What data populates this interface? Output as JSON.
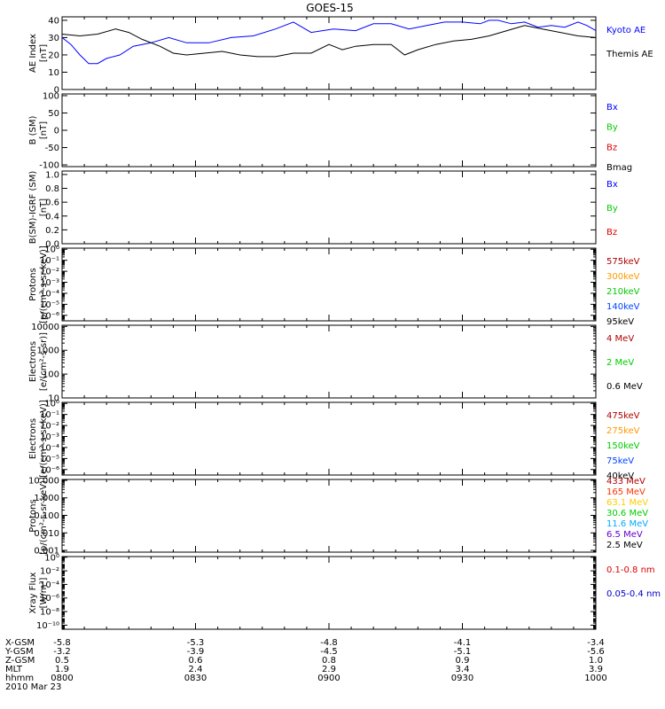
{
  "title": "GOES-15",
  "panels": [
    {
      "id": "ae",
      "ylabel_lines": [
        "AE Index",
        "[nT]"
      ],
      "ticks": [
        "0",
        "10",
        "20",
        "30",
        "40"
      ],
      "tick_values": [
        0,
        10,
        20,
        30,
        40
      ],
      "ylim": [
        0,
        42
      ],
      "scale": "linear",
      "legend": [
        {
          "text": "Kyoto AE",
          "color": "#0000ff"
        },
        {
          "text": "Themis AE",
          "color": "#000000"
        }
      ]
    },
    {
      "id": "b-sm",
      "ylabel_lines": [
        "B (SM)",
        "[nT]"
      ],
      "ticks": [
        "-100",
        "-50",
        "0",
        "50",
        "100"
      ],
      "tick_values": [
        -100,
        -50,
        0,
        50,
        100
      ],
      "ylim": [
        -105,
        105
      ],
      "scale": "linear",
      "legend": [
        {
          "text": "Bx",
          "color": "#0000ff"
        },
        {
          "text": "By",
          "color": "#00cc00"
        },
        {
          "text": "Bz",
          "color": "#dd0000"
        },
        {
          "text": "Bmag",
          "color": "#000000"
        }
      ]
    },
    {
      "id": "b-igrf",
      "ylabel_lines": [
        "B(SM)-IGRF (SM)",
        "[nT]"
      ],
      "ticks": [
        "0.0",
        "0.2",
        "0.4",
        "0.6",
        "0.8",
        "1.0"
      ],
      "tick_values": [
        0,
        0.2,
        0.4,
        0.6,
        0.8,
        1.0
      ],
      "ylim": [
        0,
        1.05
      ],
      "scale": "linear",
      "legend": [
        {
          "text": "Bx",
          "color": "#0000ff"
        },
        {
          "text": "By",
          "color": "#00cc00"
        },
        {
          "text": "Bz",
          "color": "#dd0000"
        }
      ]
    },
    {
      "id": "protons-low",
      "ylabel_lines": [
        "Protons",
        "[p/(cm²-s-sr-keV)]"
      ],
      "ticks": [
        "10⁰",
        "10⁻¹",
        "10⁻²",
        "10⁻³",
        "10⁻⁴",
        "10⁻⁵",
        "10⁻⁶"
      ],
      "tick_values": [
        0,
        -1,
        -2,
        -3,
        -4,
        -5,
        -6
      ],
      "ylim": [
        -6.5,
        0.1
      ],
      "scale": "log",
      "legend": [
        {
          "text": "575keV",
          "color": "#b00000"
        },
        {
          "text": "300keV",
          "color": "#ff9900"
        },
        {
          "text": "210keV",
          "color": "#00cc00"
        },
        {
          "text": "140keV",
          "color": "#0044ff"
        },
        {
          "text": "95keV",
          "color": "#000000"
        }
      ]
    },
    {
      "id": "electrons-high",
      "ylabel_lines": [
        "Electrons",
        "[e/(cm²-s-sr)]"
      ],
      "ticks": [
        "10",
        "100",
        "1000",
        "10000"
      ],
      "tick_values": [
        1,
        2,
        3,
        4
      ],
      "ylim": [
        1,
        4.05
      ],
      "scale": "log",
      "legend": [
        {
          "text": "4 MeV",
          "color": "#b00000"
        },
        {
          "text": "2 MeV",
          "color": "#00cc00"
        },
        {
          "text": "0.6 MeV",
          "color": "#000000"
        }
      ]
    },
    {
      "id": "electrons-low",
      "ylabel_lines": [
        "Electrons",
        "[e/(cm²-s-sr-keV)]"
      ],
      "ticks": [
        "10⁰",
        "10⁻¹",
        "10⁻²",
        "10⁻³",
        "10⁻⁴",
        "10⁻⁵",
        "10⁻⁶"
      ],
      "tick_values": [
        0,
        -1,
        -2,
        -3,
        -4,
        -5,
        -6
      ],
      "ylim": [
        -6.5,
        0.1
      ],
      "scale": "log",
      "legend": [
        {
          "text": "475keV",
          "color": "#b00000"
        },
        {
          "text": "275keV",
          "color": "#ff9900"
        },
        {
          "text": "150keV",
          "color": "#00cc00"
        },
        {
          "text": "75keV",
          "color": "#0044ff"
        },
        {
          "text": "40keV",
          "color": "#000000"
        }
      ]
    },
    {
      "id": "protons-high",
      "ylabel_lines": [
        "Protons",
        "[p/(cm²-s-sr-keV)]"
      ],
      "ticks": [
        "0.001",
        "0.010",
        "0.100",
        "1.000",
        "10.000"
      ],
      "tick_values": [
        -3,
        -2,
        -1,
        0,
        1
      ],
      "ylim": [
        -3.1,
        1.05
      ],
      "scale": "log",
      "legend": [
        {
          "text": "433 MeV",
          "color": "#b00000"
        },
        {
          "text": "165 MeV",
          "color": "#ff3300"
        },
        {
          "text": "63.1 MeV",
          "color": "#ffcc00"
        },
        {
          "text": "30.6 MeV",
          "color": "#00cc00"
        },
        {
          "text": "11.6 MeV",
          "color": "#00aaff"
        },
        {
          "text": "6.5 MeV",
          "color": "#6600cc"
        },
        {
          "text": "2.5 MeV",
          "color": "#000000"
        }
      ]
    },
    {
      "id": "xray",
      "ylabel_lines": [
        "Xray Flux",
        "[W/m²]"
      ],
      "ticks": [
        "10⁰",
        "10⁻²",
        "10⁻⁴",
        "10⁻⁶",
        "10⁻⁸",
        "10⁻¹⁰"
      ],
      "tick_values": [
        0,
        -2,
        -4,
        -6,
        -8,
        -10
      ],
      "ylim": [
        -10.6,
        0.1
      ],
      "scale": "log",
      "legend": [
        {
          "text": "0.1-0.8 nm",
          "color": "#dd0000"
        },
        {
          "text": "0.05-0.4 nm",
          "color": "#0000cc"
        }
      ]
    }
  ],
  "chart_data": {
    "type": "line",
    "title": "GOES-15",
    "x": [
      "0800",
      "0815",
      "0830",
      "0845",
      "0900",
      "0915",
      "0930",
      "0945",
      "1000"
    ],
    "x_minutes": [
      0,
      15,
      30,
      45,
      60,
      75,
      90,
      105,
      120
    ],
    "series_panel": "ae",
    "series": [
      {
        "name": "Kyoto AE",
        "color": "#0000ff",
        "points": [
          [
            0,
            30
          ],
          [
            2,
            26
          ],
          [
            4,
            20
          ],
          [
            6,
            15
          ],
          [
            8,
            15
          ],
          [
            10,
            18
          ],
          [
            13,
            20
          ],
          [
            16,
            25
          ],
          [
            20,
            27
          ],
          [
            24,
            30
          ],
          [
            28,
            27
          ],
          [
            33,
            27
          ],
          [
            38,
            30
          ],
          [
            43,
            31
          ],
          [
            48,
            35
          ],
          [
            52,
            39
          ],
          [
            56,
            33
          ],
          [
            61,
            35
          ],
          [
            66,
            34
          ],
          [
            70,
            38
          ],
          [
            74,
            38
          ],
          [
            78,
            35
          ],
          [
            82,
            37
          ],
          [
            86,
            39
          ],
          [
            90,
            39
          ],
          [
            94,
            38
          ],
          [
            96,
            40
          ],
          [
            98,
            40
          ],
          [
            101,
            38
          ],
          [
            104,
            39
          ],
          [
            107,
            36
          ],
          [
            110,
            37
          ],
          [
            113,
            36
          ],
          [
            116,
            39
          ],
          [
            118,
            37
          ],
          [
            120,
            34
          ]
        ]
      },
      {
        "name": "Themis AE",
        "color": "#000000",
        "points": [
          [
            0,
            32
          ],
          [
            4,
            31
          ],
          [
            8,
            32
          ],
          [
            12,
            35
          ],
          [
            15,
            33
          ],
          [
            18,
            29
          ],
          [
            22,
            25
          ],
          [
            25,
            21
          ],
          [
            28,
            20
          ],
          [
            32,
            21
          ],
          [
            36,
            22
          ],
          [
            40,
            20
          ],
          [
            44,
            19
          ],
          [
            48,
            19
          ],
          [
            52,
            21
          ],
          [
            56,
            21
          ],
          [
            60,
            26
          ],
          [
            63,
            23
          ],
          [
            66,
            25
          ],
          [
            70,
            26
          ],
          [
            74,
            26
          ],
          [
            77,
            20
          ],
          [
            80,
            23
          ],
          [
            84,
            26
          ],
          [
            88,
            28
          ],
          [
            92,
            29
          ],
          [
            96,
            31
          ],
          [
            100,
            34
          ],
          [
            104,
            37
          ],
          [
            106,
            36
          ],
          [
            108,
            35
          ],
          [
            112,
            33
          ],
          [
            116,
            31
          ],
          [
            120,
            30
          ]
        ]
      }
    ],
    "ylim": [
      0,
      42
    ],
    "ylabel": "AE Index [nT]"
  },
  "xaxis": {
    "labels": [
      {
        "name": "X-GSM",
        "values": [
          "-5.8",
          "-5.3",
          "-4.8",
          "-4.1",
          "-3.4"
        ]
      },
      {
        "name": "Y-GSM",
        "values": [
          "-3.2",
          "-3.9",
          "-4.5",
          "-5.1",
          "-5.6"
        ]
      },
      {
        "name": "Z-GSM",
        "values": [
          "0.5",
          "0.6",
          "0.8",
          "0.9",
          "1.0"
        ]
      },
      {
        "name": "MLT",
        "values": [
          "1.9",
          "2.4",
          "2.9",
          "3.4",
          "3.9"
        ]
      },
      {
        "name": "hhmm",
        "values": [
          "0800",
          "0830",
          "0900",
          "0930",
          "1000"
        ]
      }
    ],
    "date": "2010 Mar 23",
    "tick_minutes": [
      0,
      30,
      60,
      90,
      120
    ]
  }
}
